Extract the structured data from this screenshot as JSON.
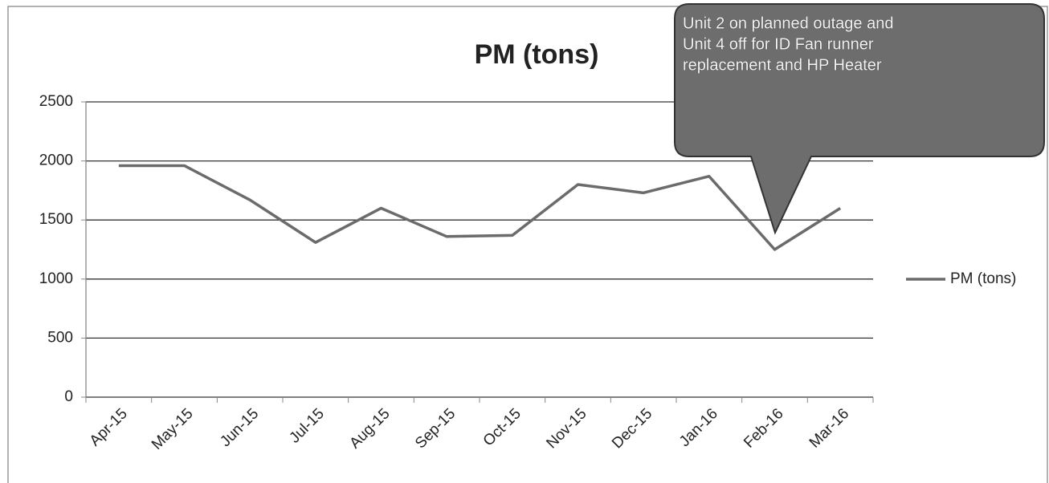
{
  "chart_data": {
    "type": "line",
    "title": "PM (tons)",
    "categories": [
      "Apr-15",
      "May-15",
      "Jun-15",
      "Jul-15",
      "Aug-15",
      "Sep-15",
      "Oct-15",
      "Nov-15",
      "Dec-15",
      "Jan-16",
      "Feb-16",
      "Mar-16"
    ],
    "series": [
      {
        "name": "PM (tons)",
        "color": "#6b6b6b",
        "values": [
          1960,
          1960,
          1670,
          1310,
          1600,
          1360,
          1370,
          1800,
          1730,
          1870,
          1250,
          1600
        ]
      }
    ],
    "ylim": [
      0,
      2500
    ],
    "yticks": [
      0,
      500,
      1000,
      1500,
      2000,
      2500
    ],
    "grid": true,
    "legend": "right",
    "annotation": {
      "lines": [
        "Unit 2 on planned outage and",
        "Unit 4 off for ID Fan runner",
        "replacement and HP Heater"
      ]
    }
  }
}
